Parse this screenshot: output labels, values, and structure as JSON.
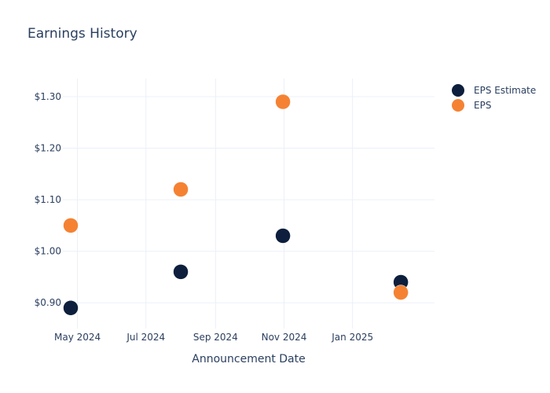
{
  "chart_data": {
    "type": "scatter",
    "title": "Earnings History",
    "xlabel": "Announcement Date",
    "ylabel": "",
    "x_tick_labels": [
      "May 2024",
      "Jul 2024",
      "Sep 2024",
      "Nov 2024",
      "Jan 2025"
    ],
    "x_ticks": [
      "2024-05-01",
      "2024-07-01",
      "2024-09-01",
      "2024-11-01",
      "2025-01-01"
    ],
    "xlim": [
      "2024-04-18",
      "2025-03-15"
    ],
    "y_tick_labels": [
      "$0.90",
      "$1.00",
      "$1.10",
      "$1.20",
      "$1.30"
    ],
    "y_ticks": [
      0.9,
      1.0,
      1.1,
      1.2,
      1.3
    ],
    "ylim": [
      0.85,
      1.335
    ],
    "grid": true,
    "legend_position": "top-right",
    "series": [
      {
        "name": "EPS Estimate",
        "color": "#0d1f3c",
        "points": [
          {
            "x": "2024-04-25",
            "y": 0.89
          },
          {
            "x": "2024-08-01",
            "y": 0.96
          },
          {
            "x": "2024-10-31",
            "y": 1.03
          },
          {
            "x": "2025-02-13",
            "y": 0.94
          }
        ]
      },
      {
        "name": "EPS",
        "color": "#f58233",
        "points": [
          {
            "x": "2024-04-25",
            "y": 1.05
          },
          {
            "x": "2024-08-01",
            "y": 1.12
          },
          {
            "x": "2024-10-31",
            "y": 1.29
          },
          {
            "x": "2025-02-13",
            "y": 0.92
          }
        ]
      }
    ]
  }
}
